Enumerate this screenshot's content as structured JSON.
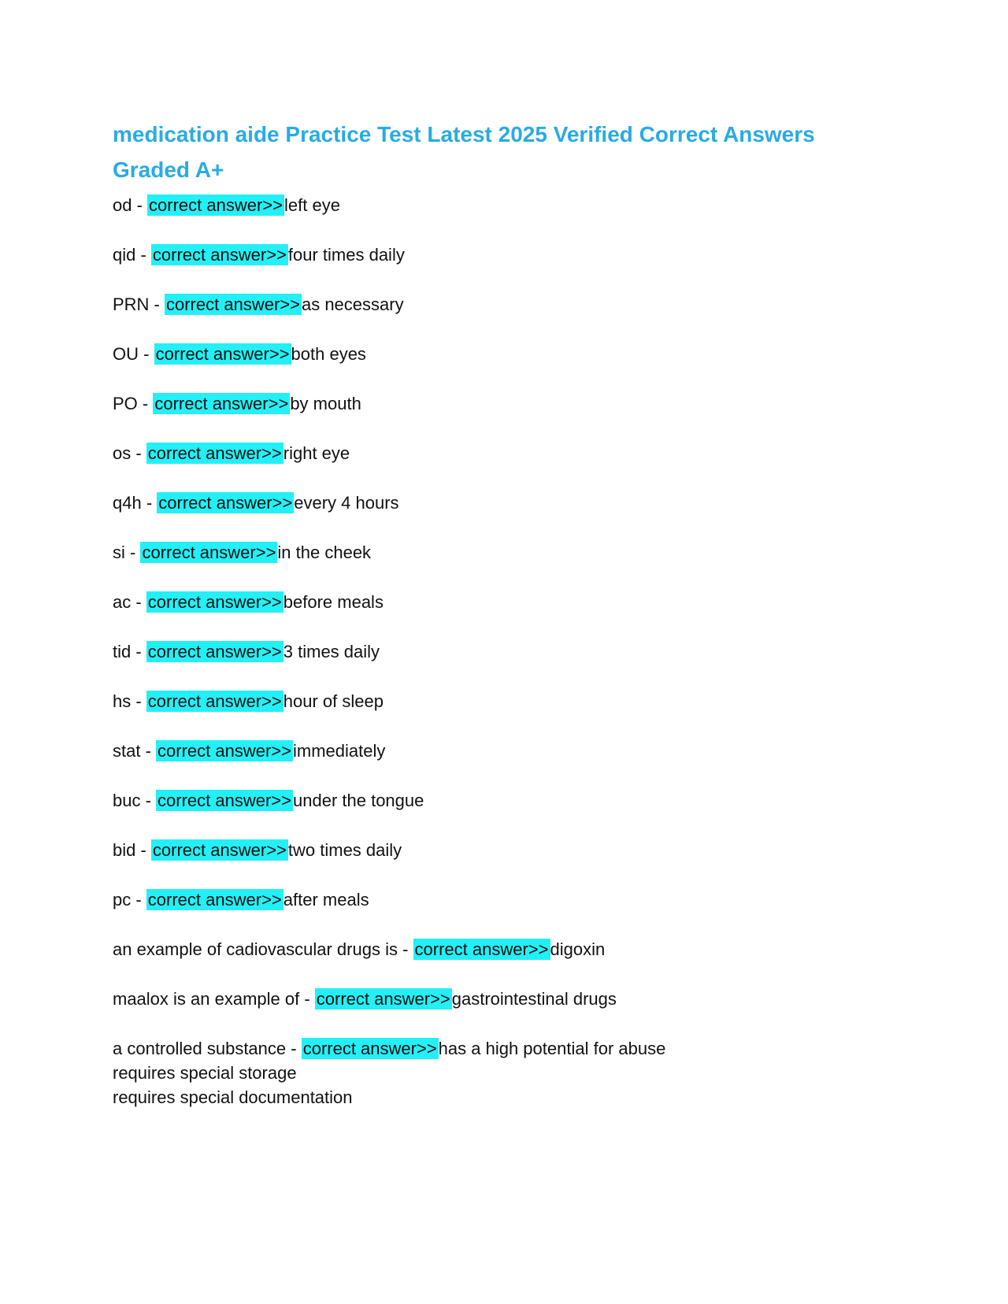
{
  "page": {
    "title": "medication aide Practice Test Latest 2025 Verified Correct Answers Graded A+",
    "separator": " - ",
    "highlight_label": "correct answer>>",
    "colors": {
      "title": "#29abe2",
      "highlight": "#23f0f6",
      "text": "#111111",
      "background": "#ffffff"
    },
    "items": [
      {
        "term": "od",
        "answer": "left eye"
      },
      {
        "term": "qid",
        "answer": "four times daily"
      },
      {
        "term": "PRN",
        "answer": "as necessary"
      },
      {
        "term": "OU",
        "answer": "both eyes"
      },
      {
        "term": "PO",
        "answer": "by mouth"
      },
      {
        "term": "os",
        "answer": "right eye"
      },
      {
        "term": "q4h",
        "answer": "every 4 hours"
      },
      {
        "term": "si",
        "answer": "in the cheek"
      },
      {
        "term": "ac",
        "answer": "before meals"
      },
      {
        "term": "tid",
        "answer": "3 times daily"
      },
      {
        "term": "hs",
        "answer": "hour of sleep"
      },
      {
        "term": "stat",
        "answer": "immediately"
      },
      {
        "term": "buc",
        "answer": "under the tongue"
      },
      {
        "term": "bid",
        "answer": "two times daily"
      },
      {
        "term": "pc",
        "answer": "after meals"
      },
      {
        "term": "an example of cadiovascular drugs is",
        "answer": "digoxin"
      },
      {
        "term": "maalox is an example of",
        "answer": "gastrointestinal drugs"
      },
      {
        "term": "a controlled substance",
        "answer": "has a high potential for abuse",
        "extra_lines": [
          "requires special storage",
          "requires special documentation"
        ]
      }
    ]
  }
}
